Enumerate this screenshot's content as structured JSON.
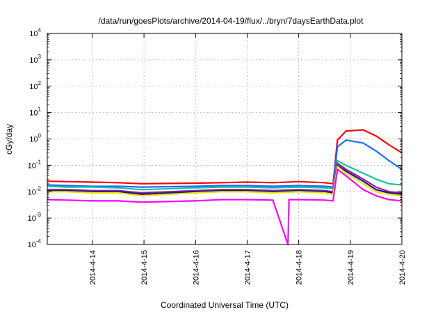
{
  "chart_data": {
    "type": "line",
    "title": "/data/run/goesPlots/archive/2014-04-19/flux/../bryn/7daysEarthData.plot",
    "xlabel": "Coordinated Universal Time (UTC)",
    "ylabel": "cGy/day",
    "y_scale": "log",
    "ylim": [
      0.0001,
      10000
    ],
    "x_range": [
      "2014-04-13T03:00",
      "2014-04-20T00:00"
    ],
    "x_ticks": [
      "2014-4-14",
      "2014-4-15",
      "2014-4-16",
      "2014-4-17",
      "2014-4-18",
      "2014-4-19",
      "2014-4-20"
    ],
    "y_ticks": [
      {
        "base": "10",
        "exp": "-4",
        "value": 0.0001
      },
      {
        "base": "10",
        "exp": "-3",
        "value": 0.001
      },
      {
        "base": "10",
        "exp": "-2",
        "value": 0.01
      },
      {
        "base": "10",
        "exp": "-1",
        "value": 0.1
      },
      {
        "base": "10",
        "exp": "0",
        "value": 1
      },
      {
        "base": "10",
        "exp": "1",
        "value": 10
      },
      {
        "base": "10",
        "exp": "2",
        "value": 100
      },
      {
        "base": "10",
        "exp": "3",
        "value": 1000
      },
      {
        "base": "10",
        "exp": "4",
        "value": 10000
      }
    ],
    "grid": true,
    "legend": "none",
    "series": [
      {
        "color": "#ff0000",
        "x": [
          "2014-04-13T03:00",
          "2014-04-13T12:00",
          "2014-04-14T00:00",
          "2014-04-14T12:00",
          "2014-04-14T23:00",
          "2014-04-16T00:00",
          "2014-04-16T12:00",
          "2014-04-17T00:00",
          "2014-04-17T12:00",
          "2014-04-18T00:00",
          "2014-04-18T12:00",
          "2014-04-18T16:00",
          "2014-04-18T18:00",
          "2014-04-18T22:00",
          "2014-04-19T06:00",
          "2014-04-19T12:00",
          "2014-04-19T18:00",
          "2014-04-20T00:00"
        ],
        "y": [
          0.025,
          0.024,
          0.023,
          0.022,
          0.02,
          0.021,
          0.022,
          0.023,
          0.022,
          0.024,
          0.022,
          0.02,
          0.9,
          2.0,
          2.2,
          1.3,
          0.6,
          0.3
        ]
      },
      {
        "color": "#1e6cff",
        "x": [
          "2014-04-13T03:00",
          "2014-04-13T12:00",
          "2014-04-14T00:00",
          "2014-04-14T12:00",
          "2014-04-14T23:00",
          "2014-04-16T00:00",
          "2014-04-16T12:00",
          "2014-04-17T00:00",
          "2014-04-17T12:00",
          "2014-04-18T00:00",
          "2014-04-18T12:00",
          "2014-04-18T16:00",
          "2014-04-18T18:00",
          "2014-04-18T22:00",
          "2014-04-19T06:00",
          "2014-04-19T12:00",
          "2014-04-19T18:00",
          "2014-04-20T00:00"
        ],
        "y": [
          0.018,
          0.017,
          0.016,
          0.016,
          0.015,
          0.016,
          0.017,
          0.017,
          0.016,
          0.017,
          0.016,
          0.015,
          0.5,
          0.9,
          0.7,
          0.35,
          0.15,
          0.07
        ]
      },
      {
        "color": "#10c8a0",
        "x": [
          "2014-04-13T03:00",
          "2014-04-13T12:00",
          "2014-04-14T00:00",
          "2014-04-14T12:00",
          "2014-04-14T23:00",
          "2014-04-16T00:00",
          "2014-04-16T12:00",
          "2014-04-17T00:00",
          "2014-04-17T12:00",
          "2014-04-18T00:00",
          "2014-04-18T12:00",
          "2014-04-18T16:00",
          "2014-04-18T18:00",
          "2014-04-18T22:00",
          "2014-04-19T06:00",
          "2014-04-19T12:00",
          "2014-04-19T18:00",
          "2014-04-20T00:00"
        ],
        "y": [
          0.016,
          0.015,
          0.015,
          0.014,
          0.012,
          0.014,
          0.015,
          0.015,
          0.014,
          0.015,
          0.014,
          0.013,
          0.15,
          0.1,
          0.05,
          0.03,
          0.02,
          0.018
        ]
      },
      {
        "color": "#9a1a9a",
        "x": [
          "2014-04-13T03:00",
          "2014-04-13T12:00",
          "2014-04-14T00:00",
          "2014-04-14T12:00",
          "2014-04-14T23:00",
          "2014-04-16T00:00",
          "2014-04-16T12:00",
          "2014-04-17T00:00",
          "2014-04-17T12:00",
          "2014-04-18T00:00",
          "2014-04-18T12:00",
          "2014-04-18T16:00",
          "2014-04-18T18:00",
          "2014-04-18T22:00",
          "2014-04-19T06:00",
          "2014-04-19T12:00",
          "2014-04-19T18:00",
          "2014-04-20T00:00"
        ],
        "y": [
          0.012,
          0.012,
          0.011,
          0.011,
          0.009,
          0.011,
          0.012,
          0.012,
          0.011,
          0.012,
          0.011,
          0.01,
          0.12,
          0.07,
          0.03,
          0.015,
          0.01,
          0.009
        ]
      },
      {
        "color": "#1a1a8c",
        "x": [
          "2014-04-13T03:00",
          "2014-04-13T12:00",
          "2014-04-14T00:00",
          "2014-04-14T12:00",
          "2014-04-14T23:00",
          "2014-04-16T00:00",
          "2014-04-16T12:00",
          "2014-04-17T00:00",
          "2014-04-17T12:00",
          "2014-04-18T00:00",
          "2014-04-18T12:00",
          "2014-04-18T16:00",
          "2014-04-18T18:00",
          "2014-04-18T22:00",
          "2014-04-19T06:00",
          "2014-04-19T12:00",
          "2014-04-19T18:00",
          "2014-04-20T00:00"
        ],
        "y": [
          0.011,
          0.011,
          0.01,
          0.01,
          0.008,
          0.01,
          0.011,
          0.011,
          0.01,
          0.011,
          0.01,
          0.009,
          0.1,
          0.06,
          0.025,
          0.012,
          0.009,
          0.008
        ]
      },
      {
        "color": "#e6e600",
        "x": [
          "2014-04-13T03:00",
          "2014-04-13T12:00",
          "2014-04-14T00:00",
          "2014-04-14T12:00",
          "2014-04-14T23:00",
          "2014-04-16T00:00",
          "2014-04-16T12:00",
          "2014-04-17T00:00",
          "2014-04-17T12:00",
          "2014-04-18T00:00",
          "2014-04-18T12:00",
          "2014-04-18T16:00",
          "2014-04-18T18:00",
          "2014-04-18T22:00",
          "2014-04-19T06:00",
          "2014-04-19T12:00",
          "2014-04-19T18:00",
          "2014-04-20T00:00"
        ],
        "y": [
          0.01,
          0.01,
          0.009,
          0.009,
          0.007,
          0.009,
          0.01,
          0.01,
          0.009,
          0.01,
          0.009,
          0.008,
          0.09,
          0.05,
          0.02,
          0.01,
          0.008,
          0.007
        ]
      },
      {
        "color": "#ff00ff",
        "x": [
          "2014-04-13T03:00",
          "2014-04-13T12:00",
          "2014-04-14T00:00",
          "2014-04-14T12:00",
          "2014-04-14T23:00",
          "2014-04-16T00:00",
          "2014-04-16T12:00",
          "2014-04-17T00:00",
          "2014-04-17T12:00",
          "2014-04-17T19:00",
          "2014-04-17T19:30",
          "2014-04-18T00:00",
          "2014-04-18T12:00",
          "2014-04-18T16:00",
          "2014-04-18T18:00",
          "2014-04-18T22:00",
          "2014-04-19T06:00",
          "2014-04-19T12:00",
          "2014-04-19T18:00",
          "2014-04-20T00:00"
        ],
        "y": [
          0.005,
          0.0048,
          0.0045,
          0.0045,
          0.004,
          0.0045,
          0.005,
          0.005,
          0.0048,
          0.0001,
          0.005,
          0.005,
          0.0048,
          0.0045,
          0.07,
          0.04,
          0.012,
          0.007,
          0.005,
          0.0045
        ]
      }
    ]
  }
}
